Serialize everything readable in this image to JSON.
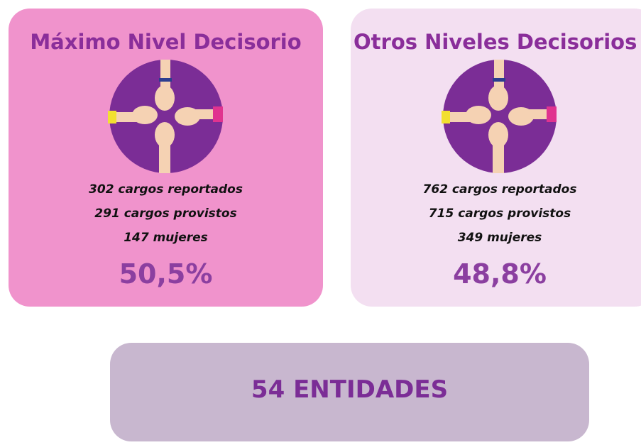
{
  "cards": [
    {
      "title": "Máximo Nivel Decisorio",
      "lines": [
        "302 cargos reportados",
        "291 cargos provistos",
        "147 mujeres"
      ],
      "percent": "50,5%"
    },
    {
      "title": "Otros Niveles Decisorios",
      "lines": [
        "762 cargos reportados",
        "715 cargos provistos",
        "349 mujeres"
      ],
      "percent": "48,8%"
    }
  ],
  "footer": {
    "text": "54 ENTIDADES"
  }
}
